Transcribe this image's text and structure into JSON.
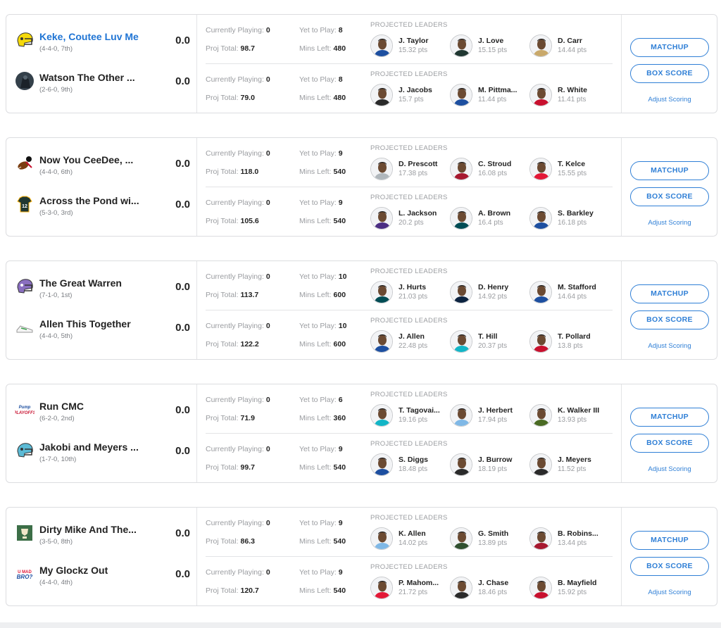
{
  "labels": {
    "currently_playing": "Currently Playing:",
    "yet_to_play": "Yet to Play:",
    "proj_total": "Proj Total:",
    "mins_left": "Mins Left:",
    "projected_leaders": "PROJECTED LEADERS",
    "matchup": "MATCHUP",
    "box_score": "BOX SCORE",
    "adjust_scoring": "Adjust Scoring"
  },
  "matchups": [
    {
      "teams": [
        {
          "name": "Keke, Coutee Luv Me",
          "record": "(4-4-0, 7th)",
          "score": "0.0",
          "highlight": true,
          "logo": "helmet-yellow-icon",
          "currently_playing": "0",
          "yet_to_play": "8",
          "proj_total": "98.7",
          "mins_left": "480",
          "leaders": [
            {
              "name": "J. Taylor",
              "pts": "15.32 pts",
              "avatar_color": "#1d4fa0"
            },
            {
              "name": "J. Love",
              "pts": "15.15 pts",
              "avatar_color": "#203731"
            },
            {
              "name": "D. Carr",
              "pts": "14.44 pts",
              "avatar_color": "#c9a96b"
            }
          ]
        },
        {
          "name": "Watson The Other ...",
          "record": "(2-6-0, 9th)",
          "score": "0.0",
          "highlight": false,
          "logo": "dark-photo-icon",
          "currently_playing": "0",
          "yet_to_play": "8",
          "proj_total": "79.0",
          "mins_left": "480",
          "leaders": [
            {
              "name": "J. Jacobs",
              "pts": "15.7 pts",
              "avatar_color": "#2a2a2a"
            },
            {
              "name": "M. Pittma...",
              "pts": "11.44 pts",
              "avatar_color": "#1d4fa0"
            },
            {
              "name": "R. White",
              "pts": "11.41 pts",
              "avatar_color": "#c8102e"
            }
          ]
        }
      ]
    },
    {
      "teams": [
        {
          "name": "Now You CeeDee, ...",
          "record": "(4-4-0, 6th)",
          "score": "0.0",
          "highlight": false,
          "logo": "cartoon-football-icon",
          "currently_playing": "0",
          "yet_to_play": "9",
          "proj_total": "118.0",
          "mins_left": "540",
          "leaders": [
            {
              "name": "D. Prescott",
              "pts": "17.38 pts",
              "avatar_color": "#b0b7bc"
            },
            {
              "name": "C. Stroud",
              "pts": "16.08 pts",
              "avatar_color": "#a71930"
            },
            {
              "name": "T. Kelce",
              "pts": "15.55 pts",
              "avatar_color": "#e31837"
            }
          ]
        },
        {
          "name": "Across the Pond wi...",
          "record": "(5-3-0, 3rd)",
          "score": "0.0",
          "highlight": false,
          "logo": "green-jersey-icon",
          "currently_playing": "0",
          "yet_to_play": "9",
          "proj_total": "105.6",
          "mins_left": "540",
          "leaders": [
            {
              "name": "L. Jackson",
              "pts": "20.2 pts",
              "avatar_color": "#4b2e83"
            },
            {
              "name": "A. Brown",
              "pts": "16.4 pts",
              "avatar_color": "#004c54"
            },
            {
              "name": "S. Barkley",
              "pts": "16.18 pts",
              "avatar_color": "#1d4fa0"
            }
          ]
        }
      ]
    },
    {
      "teams": [
        {
          "name": "The Great Warren",
          "record": "(7-1-0, 1st)",
          "score": "0.0",
          "highlight": false,
          "logo": "helmet-purple-icon",
          "currently_playing": "0",
          "yet_to_play": "10",
          "proj_total": "113.7",
          "mins_left": "600",
          "leaders": [
            {
              "name": "J. Hurts",
              "pts": "21.03 pts",
              "avatar_color": "#004c54"
            },
            {
              "name": "D. Henry",
              "pts": "14.92 pts",
              "avatar_color": "#0c2340"
            },
            {
              "name": "M. Stafford",
              "pts": "14.64 pts",
              "avatar_color": "#1d4fa0"
            }
          ]
        },
        {
          "name": "Allen This Together",
          "record": "(4-4-0, 5th)",
          "score": "0.0",
          "highlight": false,
          "logo": "sneaker-icon",
          "currently_playing": "0",
          "yet_to_play": "10",
          "proj_total": "122.2",
          "mins_left": "600",
          "leaders": [
            {
              "name": "J. Allen",
              "pts": "22.48 pts",
              "avatar_color": "#1d4fa0"
            },
            {
              "name": "T. Hill",
              "pts": "20.37 pts",
              "avatar_color": "#12b5c6"
            },
            {
              "name": "T. Pollard",
              "pts": "13.8 pts",
              "avatar_color": "#c8102e"
            }
          ]
        }
      ]
    },
    {
      "teams": [
        {
          "name": "Run CMC",
          "record": "(6-2-0, 2nd)",
          "score": "0.0",
          "highlight": false,
          "logo": "playoffs-badge-icon",
          "currently_playing": "0",
          "yet_to_play": "6",
          "proj_total": "71.9",
          "mins_left": "360",
          "leaders": [
            {
              "name": "T. Tagovai...",
              "pts": "19.16 pts",
              "avatar_color": "#12b5c6"
            },
            {
              "name": "J. Herbert",
              "pts": "17.94 pts",
              "avatar_color": "#7fb8e6"
            },
            {
              "name": "K. Walker III",
              "pts": "13.93 pts",
              "avatar_color": "#4a6b23"
            }
          ]
        },
        {
          "name": "Jakobi and Meyers ...",
          "record": "(1-7-0, 10th)",
          "score": "0.0",
          "highlight": false,
          "logo": "helmet-teal-icon",
          "currently_playing": "0",
          "yet_to_play": "9",
          "proj_total": "99.7",
          "mins_left": "540",
          "leaders": [
            {
              "name": "S. Diggs",
              "pts": "18.48 pts",
              "avatar_color": "#1d4fa0"
            },
            {
              "name": "J. Burrow",
              "pts": "18.19 pts",
              "avatar_color": "#2a2a2a"
            },
            {
              "name": "J. Meyers",
              "pts": "11.52 pts",
              "avatar_color": "#2a2a2a"
            }
          ]
        }
      ]
    },
    {
      "teams": [
        {
          "name": "Dirty Mike And The...",
          "record": "(3-5-0, 8th)",
          "score": "0.0",
          "highlight": false,
          "logo": "green-trophy-icon",
          "currently_playing": "0",
          "yet_to_play": "9",
          "proj_total": "86.3",
          "mins_left": "540",
          "leaders": [
            {
              "name": "K. Allen",
              "pts": "14.02 pts",
              "avatar_color": "#7fb8e6"
            },
            {
              "name": "G. Smith",
              "pts": "13.89 pts",
              "avatar_color": "#2f4f2f"
            },
            {
              "name": "B. Robins...",
              "pts": "13.44 pts",
              "avatar_color": "#a71930"
            }
          ]
        },
        {
          "name": "My Glockz Out",
          "record": "(4-4-0, 4th)",
          "score": "0.0",
          "highlight": false,
          "logo": "u-mad-bro-icon",
          "currently_playing": "0",
          "yet_to_play": "9",
          "proj_total": "120.7",
          "mins_left": "540",
          "leaders": [
            {
              "name": "P. Mahom...",
              "pts": "21.72 pts",
              "avatar_color": "#e31837"
            },
            {
              "name": "J. Chase",
              "pts": "18.46 pts",
              "avatar_color": "#2a2a2a"
            },
            {
              "name": "B. Mayfield",
              "pts": "15.92 pts",
              "avatar_color": "#c8102e"
            }
          ]
        }
      ]
    }
  ]
}
